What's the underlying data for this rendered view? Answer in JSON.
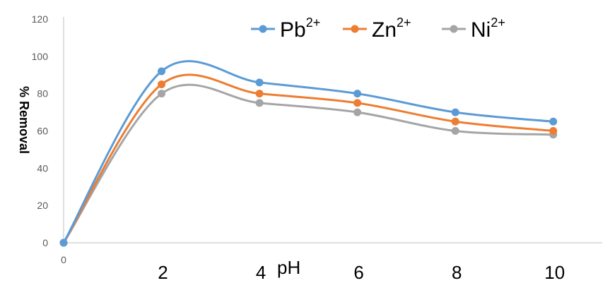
{
  "chart_data": {
    "type": "line",
    "title": "",
    "xlabel": "pH",
    "ylabel": "% Removal",
    "ylim": [
      0,
      120
    ],
    "yticks": [
      0,
      20,
      40,
      60,
      80,
      100,
      120
    ],
    "xticks_small": [
      0
    ],
    "xticks": [
      2,
      4,
      6,
      8,
      10
    ],
    "smooth": true,
    "grid": false,
    "legend_position": "top-right",
    "x": [
      0,
      2,
      4,
      6,
      8,
      10
    ],
    "series": [
      {
        "name": "Pb",
        "sup": "2+",
        "color": "#5b9bd5",
        "values": [
          0,
          92,
          86,
          80,
          70,
          65
        ]
      },
      {
        "name": "Zn",
        "sup": "2+",
        "color": "#ed7d31",
        "values": [
          0,
          85,
          80,
          75,
          65,
          60
        ]
      },
      {
        "name": "Ni",
        "sup": "2+",
        "color": "#a5a5a5",
        "values": [
          0,
          80,
          75,
          70,
          60,
          58
        ]
      }
    ]
  }
}
